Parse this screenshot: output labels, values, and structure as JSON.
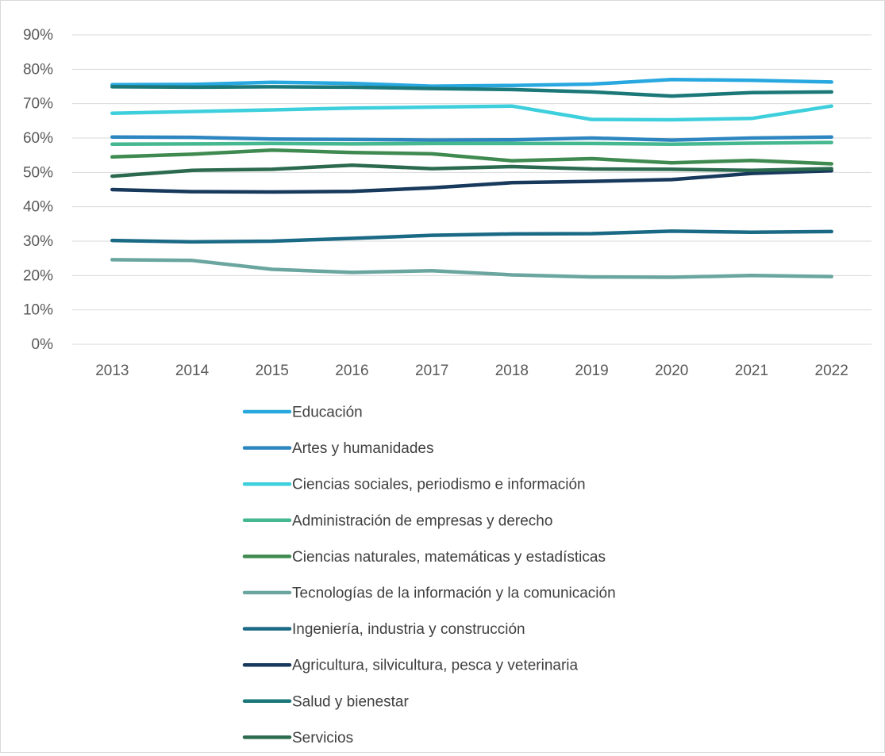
{
  "chart_data": {
    "type": "line",
    "title": "",
    "xlabel": "",
    "ylabel": "",
    "x": [
      "2013",
      "2014",
      "2015",
      "2016",
      "2017",
      "2018",
      "2019",
      "2020",
      "2021",
      "2022"
    ],
    "ylim": [
      0,
      0.9
    ],
    "yticks": [
      0,
      0.1,
      0.2,
      0.3,
      0.4,
      0.5,
      0.6,
      0.7,
      0.8,
      0.9
    ],
    "ytick_labels": [
      "0%",
      "10%",
      "20%",
      "30%",
      "40%",
      "50%",
      "60%",
      "70%",
      "80%",
      "90%"
    ],
    "grid": true,
    "legend_position": "bottom",
    "series": [
      {
        "name": "Educación",
        "color": "#29a8e0",
        "values": [
          0.755,
          0.756,
          0.762,
          0.759,
          0.751,
          0.753,
          0.757,
          0.77,
          0.768,
          0.763
        ]
      },
      {
        "name": "Artes y humanidades",
        "color": "#2e86c1",
        "values": [
          0.603,
          0.602,
          0.597,
          0.596,
          0.594,
          0.595,
          0.6,
          0.594,
          0.6,
          0.603
        ]
      },
      {
        "name": "Ciencias sociales, periodismo e información",
        "color": "#3ecfdc",
        "values": [
          0.672,
          0.677,
          0.682,
          0.687,
          0.69,
          0.693,
          0.654,
          0.653,
          0.657,
          0.693
        ]
      },
      {
        "name": "Administración de empresas y derecho",
        "color": "#45b890",
        "values": [
          0.582,
          0.583,
          0.584,
          0.583,
          0.584,
          0.584,
          0.584,
          0.582,
          0.585,
          0.587
        ]
      },
      {
        "name": "Ciencias naturales, matemáticas y estadísticas",
        "color": "#3f8a50",
        "values": [
          0.545,
          0.553,
          0.565,
          0.558,
          0.554,
          0.534,
          0.54,
          0.528,
          0.535,
          0.525
        ]
      },
      {
        "name": "Tecnologías de la información y la comunicación",
        "color": "#6aa69f",
        "values": [
          0.246,
          0.244,
          0.218,
          0.209,
          0.214,
          0.202,
          0.196,
          0.195,
          0.2,
          0.197
        ]
      },
      {
        "name": "Ingeniería, industria y construcción",
        "color": "#1a6a85",
        "values": [
          0.302,
          0.298,
          0.3,
          0.308,
          0.317,
          0.321,
          0.322,
          0.329,
          0.326,
          0.328
        ]
      },
      {
        "name": "Agricultura, silvicultura, pesca y veterinaria",
        "color": "#17395c",
        "values": [
          0.45,
          0.444,
          0.443,
          0.445,
          0.455,
          0.47,
          0.474,
          0.479,
          0.497,
          0.505
        ]
      },
      {
        "name": "Salud y bienestar",
        "color": "#1c7878",
        "values": [
          0.749,
          0.748,
          0.749,
          0.748,
          0.744,
          0.741,
          0.734,
          0.722,
          0.732,
          0.734
        ]
      },
      {
        "name": "Servicios",
        "color": "#2b6a4f",
        "values": [
          0.489,
          0.506,
          0.509,
          0.521,
          0.511,
          0.517,
          0.51,
          0.509,
          0.506,
          0.511
        ]
      }
    ]
  }
}
